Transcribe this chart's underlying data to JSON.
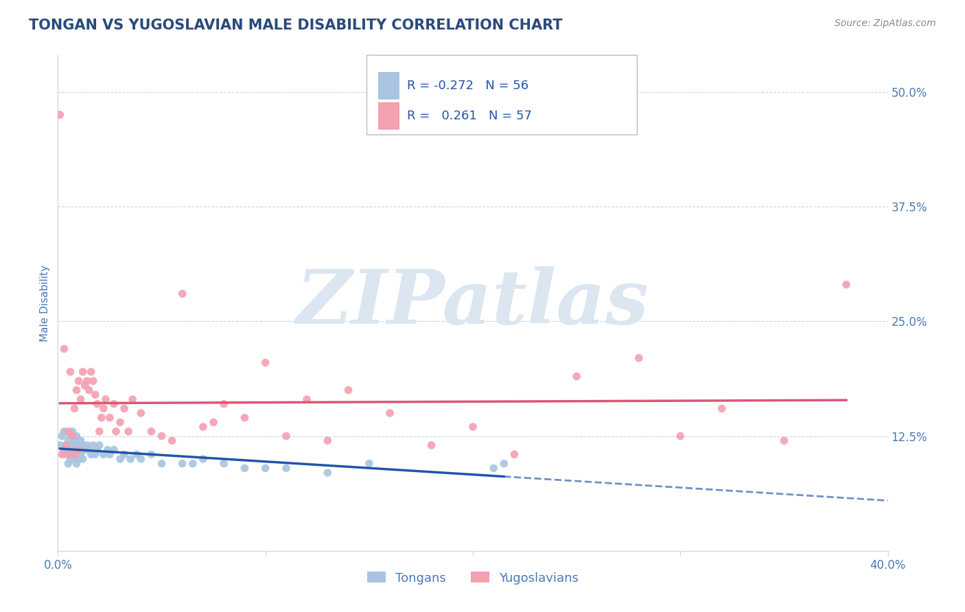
{
  "title": "TONGAN VS YUGOSLAVIAN MALE DISABILITY CORRELATION CHART",
  "source_text": "Source: ZipAtlas.com",
  "ylabel": "Male Disability",
  "ytick_labels": [
    "12.5%",
    "25.0%",
    "37.5%",
    "50.0%"
  ],
  "ytick_values": [
    0.125,
    0.25,
    0.375,
    0.5
  ],
  "xlim": [
    0.0,
    0.4
  ],
  "ylim": [
    0.0,
    0.54
  ],
  "legend_r_tongan": "-0.272",
  "legend_n_tongan": "56",
  "legend_r_yugo": "0.261",
  "legend_n_yugo": "57",
  "tongan_color": "#a8c4e0",
  "yugo_color": "#f4a0b0",
  "tongan_line_color": "#2255aa",
  "yugo_line_color": "#dd5577",
  "background_color": "#ffffff",
  "watermark_color": "#dce6f0",
  "title_color": "#2a4a7a",
  "axis_label_color": "#4a7ab5",
  "legend_r_color": "#2255aa",
  "grid_color": "#c8d4e0",
  "tongan_x": [
    0.001,
    0.002,
    0.003,
    0.003,
    0.004,
    0.004,
    0.005,
    0.005,
    0.005,
    0.006,
    0.006,
    0.006,
    0.007,
    0.007,
    0.007,
    0.008,
    0.008,
    0.009,
    0.009,
    0.009,
    0.01,
    0.01,
    0.011,
    0.011,
    0.012,
    0.012,
    0.013,
    0.014,
    0.015,
    0.016,
    0.017,
    0.018,
    0.019,
    0.02,
    0.022,
    0.024,
    0.025,
    0.027,
    0.03,
    0.032,
    0.035,
    0.038,
    0.04,
    0.045,
    0.05,
    0.06,
    0.065,
    0.07,
    0.08,
    0.09,
    0.1,
    0.11,
    0.13,
    0.15,
    0.21,
    0.215
  ],
  "tongan_y": [
    0.115,
    0.125,
    0.13,
    0.11,
    0.115,
    0.105,
    0.12,
    0.11,
    0.095,
    0.125,
    0.11,
    0.1,
    0.13,
    0.115,
    0.105,
    0.12,
    0.1,
    0.125,
    0.11,
    0.095,
    0.115,
    0.1,
    0.12,
    0.105,
    0.115,
    0.1,
    0.11,
    0.115,
    0.11,
    0.105,
    0.115,
    0.105,
    0.11,
    0.115,
    0.105,
    0.11,
    0.105,
    0.11,
    0.1,
    0.105,
    0.1,
    0.105,
    0.1,
    0.105,
    0.095,
    0.095,
    0.095,
    0.1,
    0.095,
    0.09,
    0.09,
    0.09,
    0.085,
    0.095,
    0.09,
    0.095
  ],
  "yugo_x": [
    0.001,
    0.002,
    0.003,
    0.004,
    0.005,
    0.005,
    0.006,
    0.007,
    0.008,
    0.008,
    0.009,
    0.01,
    0.01,
    0.011,
    0.012,
    0.013,
    0.014,
    0.015,
    0.016,
    0.017,
    0.018,
    0.019,
    0.02,
    0.021,
    0.022,
    0.023,
    0.025,
    0.027,
    0.028,
    0.03,
    0.032,
    0.034,
    0.036,
    0.04,
    0.045,
    0.05,
    0.055,
    0.06,
    0.07,
    0.075,
    0.08,
    0.09,
    0.1,
    0.11,
    0.12,
    0.13,
    0.14,
    0.16,
    0.18,
    0.2,
    0.22,
    0.25,
    0.28,
    0.3,
    0.32,
    0.35,
    0.38
  ],
  "yugo_y": [
    0.475,
    0.105,
    0.22,
    0.115,
    0.13,
    0.105,
    0.195,
    0.125,
    0.105,
    0.155,
    0.175,
    0.185,
    0.11,
    0.165,
    0.195,
    0.18,
    0.185,
    0.175,
    0.195,
    0.185,
    0.17,
    0.16,
    0.13,
    0.145,
    0.155,
    0.165,
    0.145,
    0.16,
    0.13,
    0.14,
    0.155,
    0.13,
    0.165,
    0.15,
    0.13,
    0.125,
    0.12,
    0.28,
    0.135,
    0.14,
    0.16,
    0.145,
    0.205,
    0.125,
    0.165,
    0.12,
    0.175,
    0.15,
    0.115,
    0.135,
    0.105,
    0.19,
    0.21,
    0.125,
    0.155,
    0.12,
    0.29
  ]
}
